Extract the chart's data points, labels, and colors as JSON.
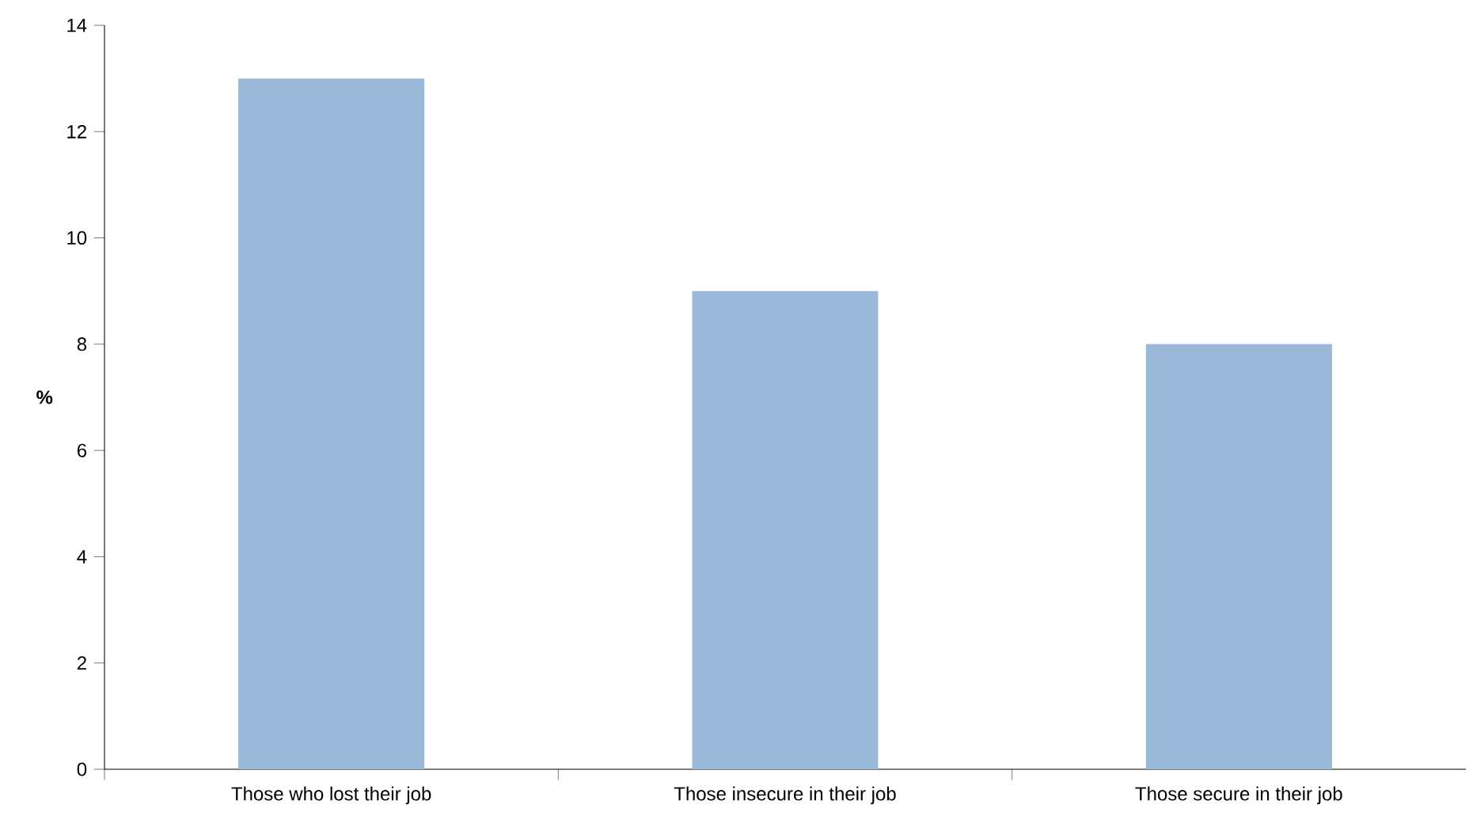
{
  "chart_data": {
    "type": "bar",
    "ylabel": "%",
    "categories": [
      "Those who lost their job",
      "Those insecure in their job",
      "Those secure in their job"
    ],
    "values": [
      13,
      9,
      8
    ],
    "color": "#9ab9d9",
    "ylim": [
      0,
      14
    ],
    "yticks": [
      0,
      2,
      4,
      6,
      8,
      10,
      12,
      14
    ]
  }
}
